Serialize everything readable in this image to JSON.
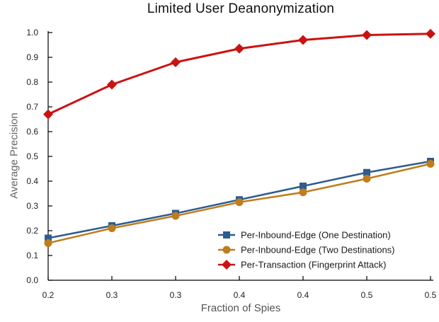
{
  "figure": {
    "background": "#ffffff",
    "axis_color": "#000000",
    "tick_label_color": "#222222"
  },
  "chart_data": {
    "type": "line",
    "title": "Limited User Deanonymization",
    "xlabel": "Fraction of Spies",
    "ylabel": "Average Precision",
    "x": [
      0.2,
      0.25,
      0.3,
      0.35,
      0.4,
      0.45,
      0.5
    ],
    "x_tick_labels": [
      "0.2",
      "0.3",
      "0.3",
      "0.4",
      "0.4",
      "0.5",
      "0.5"
    ],
    "y_ticks": [
      0.0,
      0.1,
      0.2,
      0.3,
      0.4,
      0.5,
      0.6,
      0.7,
      0.8,
      0.9,
      1.0
    ],
    "y_tick_labels": [
      "0.0",
      "0.1",
      "0.2",
      "0.3",
      "0.4",
      "0.5",
      "0.6",
      "0.7",
      "0.8",
      "0.9",
      "1.0"
    ],
    "xlim": [
      0.2,
      0.5
    ],
    "ylim": [
      0.0,
      1.0
    ],
    "grid": false,
    "legend_position": "lower right",
    "series": [
      {
        "name": "Per-Inbound-Edge (One Destination)",
        "marker": "square",
        "color": "#2E5C8F",
        "values": [
          0.17,
          0.22,
          0.27,
          0.325,
          0.38,
          0.435,
          0.48
        ]
      },
      {
        "name": "Per-Inbound-Edge (Two Destinations)",
        "marker": "circle",
        "color": "#BF7D1C",
        "values": [
          0.15,
          0.21,
          0.26,
          0.315,
          0.355,
          0.41,
          0.47
        ]
      },
      {
        "name": "Per-Transaction (Fingerprint Attack)",
        "marker": "diamond",
        "color": "#CC1111",
        "values": [
          0.67,
          0.79,
          0.88,
          0.935,
          0.97,
          0.99,
          0.995
        ]
      }
    ]
  }
}
